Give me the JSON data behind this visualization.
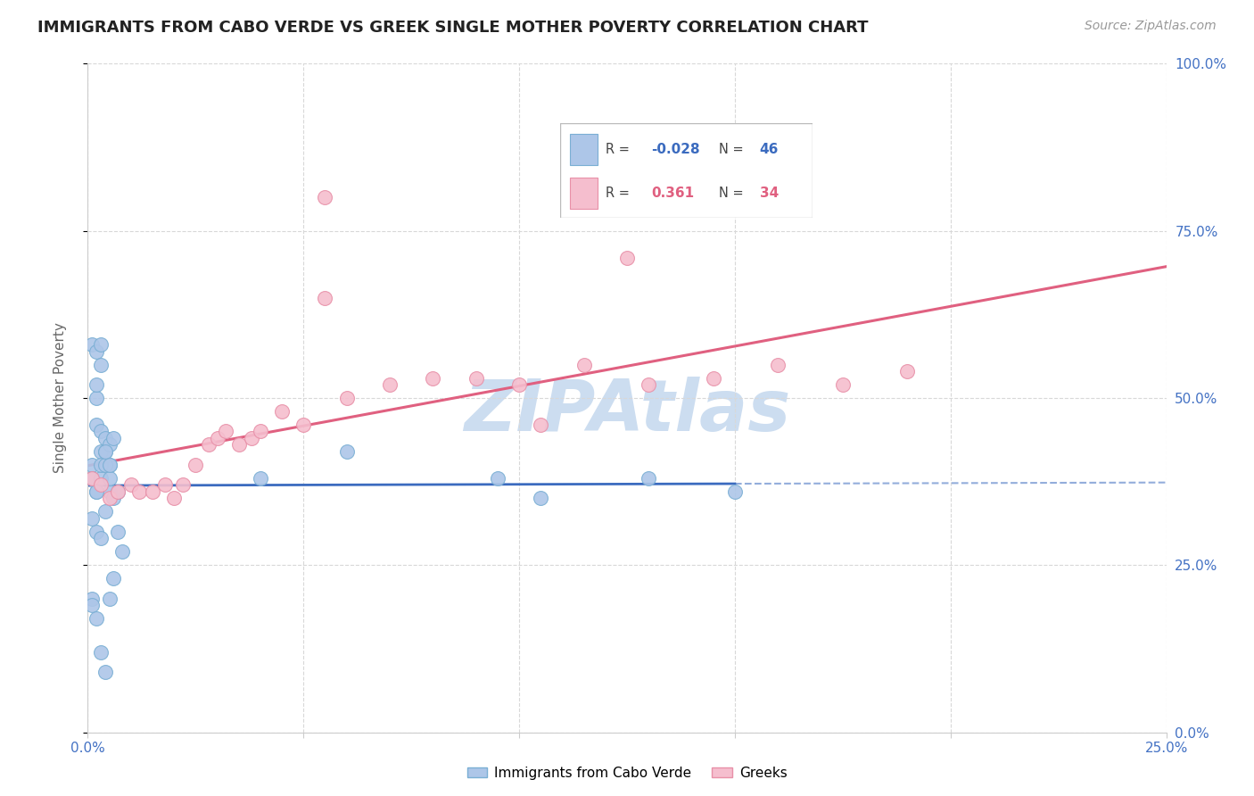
{
  "title": "IMMIGRANTS FROM CABO VERDE VS GREEK SINGLE MOTHER POVERTY CORRELATION CHART",
  "source": "Source: ZipAtlas.com",
  "ylabel": "Single Mother Poverty",
  "xlim": [
    0,
    0.25
  ],
  "ylim": [
    0,
    1.0
  ],
  "xticks": [
    0.0,
    0.05,
    0.1,
    0.15,
    0.2,
    0.25
  ],
  "yticks": [
    0.0,
    0.25,
    0.5,
    0.75,
    1.0
  ],
  "ytick_labels_right": [
    "0.0%",
    "25.0%",
    "50.0%",
    "75.0%",
    "100.0%"
  ],
  "xtick_labels": [
    "0.0%",
    "",
    "",
    "",
    "",
    "25.0%"
  ],
  "series1_label": "Immigrants from Cabo Verde",
  "series1_R": -0.028,
  "series1_N": 46,
  "series1_color": "#adc6e8",
  "series1_edgecolor": "#7aafd4",
  "series2_label": "Greeks",
  "series2_R": 0.361,
  "series2_N": 34,
  "series2_color": "#f5bece",
  "series2_edgecolor": "#e890a8",
  "trend1_color": "#3b6bbf",
  "trend2_color": "#e06080",
  "watermark": "ZIPAtlas",
  "watermark_color": "#ccddf0",
  "background_color": "#ffffff",
  "grid_color": "#d8d8d8",
  "title_fontsize": 13,
  "axis_label_color": "#4472c4",
  "cabo_verde_x": [
    0.001,
    0.002,
    0.002,
    0.003,
    0.003,
    0.004,
    0.004,
    0.005,
    0.005,
    0.006,
    0.001,
    0.002,
    0.003,
    0.003,
    0.004,
    0.004,
    0.005,
    0.005,
    0.006,
    0.007,
    0.001,
    0.002,
    0.002,
    0.003,
    0.003,
    0.004,
    0.005,
    0.002,
    0.003,
    0.001,
    0.001,
    0.002,
    0.003,
    0.004,
    0.005,
    0.006,
    0.001,
    0.002,
    0.04,
    0.06,
    0.095,
    0.105,
    0.13,
    0.15,
    0.007,
    0.008
  ],
  "cabo_verde_y": [
    0.4,
    0.46,
    0.5,
    0.42,
    0.45,
    0.44,
    0.42,
    0.43,
    0.4,
    0.44,
    0.38,
    0.36,
    0.38,
    0.4,
    0.4,
    0.42,
    0.36,
    0.38,
    0.35,
    0.36,
    0.58,
    0.57,
    0.52,
    0.58,
    0.55,
    0.33,
    0.4,
    0.3,
    0.29,
    0.2,
    0.19,
    0.17,
    0.12,
    0.09,
    0.2,
    0.23,
    0.32,
    0.36,
    0.38,
    0.42,
    0.38,
    0.35,
    0.38,
    0.36,
    0.3,
    0.27
  ],
  "greeks_x": [
    0.001,
    0.003,
    0.005,
    0.007,
    0.01,
    0.012,
    0.015,
    0.018,
    0.02,
    0.022,
    0.025,
    0.028,
    0.03,
    0.032,
    0.035,
    0.038,
    0.04,
    0.045,
    0.05,
    0.055,
    0.06,
    0.07,
    0.08,
    0.09,
    0.1,
    0.115,
    0.13,
    0.145,
    0.16,
    0.175,
    0.19,
    0.055,
    0.105,
    0.125
  ],
  "greeks_y": [
    0.38,
    0.37,
    0.35,
    0.36,
    0.37,
    0.36,
    0.36,
    0.37,
    0.35,
    0.37,
    0.4,
    0.43,
    0.44,
    0.45,
    0.43,
    0.44,
    0.45,
    0.48,
    0.46,
    0.65,
    0.5,
    0.52,
    0.53,
    0.53,
    0.52,
    0.55,
    0.52,
    0.53,
    0.55,
    0.52,
    0.54,
    0.8,
    0.46,
    0.71
  ]
}
